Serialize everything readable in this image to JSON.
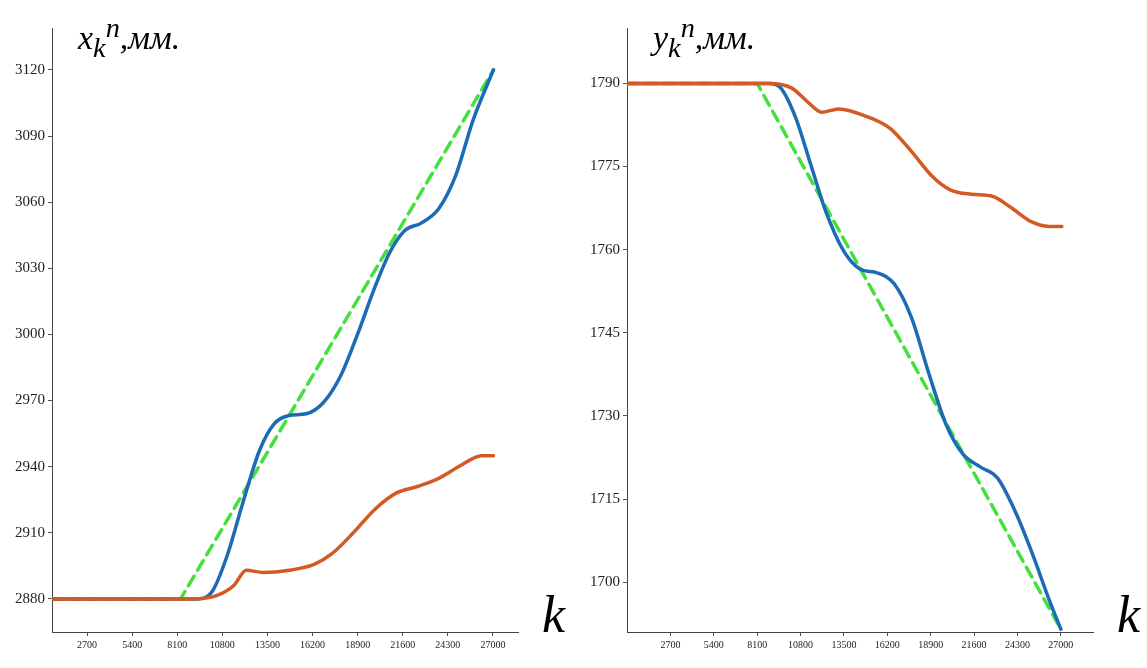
{
  "chart_data": [
    {
      "type": "line",
      "xlabel": "k",
      "ylabel": "x$_{k}$$^{n}$,мм.",
      "xlim": [
        600,
        28500
      ],
      "ylim": [
        2865,
        3139
      ],
      "xticks": [
        2700,
        5400,
        8100,
        10800,
        13500,
        16200,
        18900,
        21600,
        24300,
        27000
      ],
      "yticks": [
        2880,
        2910,
        2940,
        2970,
        3000,
        3030,
        3060,
        3090,
        3120
      ],
      "grid": false,
      "legend": false,
      "marker": "none",
      "series": [
        {
          "color": "#d35a24",
          "line_style": "solid",
          "x": [
            600,
            9000,
            10445,
            11470,
            12240,
            13260,
            14800,
            16330,
            17360,
            18640,
            19910,
            21200,
            22480,
            23760,
            25040,
            26320,
            27030
          ],
          "values": [
            2880,
            2880,
            2881.5,
            2886,
            2893,
            2892,
            2893,
            2895.8,
            2900.5,
            2910,
            2920.5,
            2928,
            2931,
            2934.7,
            2940.4,
            2945,
            2945
          ]
        },
        {
          "color": "#1c6bb5",
          "line_style": "solid",
          "x": [
            600,
            9290,
            10190,
            11085,
            11980,
            13005,
            13900,
            14800,
            15820,
            16840,
            17870,
            18890,
            19910,
            20810,
            21710,
            22730,
            23750,
            24780,
            25800,
            27030
          ],
          "values": [
            2880,
            2880,
            2883.4,
            2899.6,
            2922.4,
            2947,
            2959.4,
            2963.2,
            2964,
            2969,
            2981,
            3000,
            3021,
            3037,
            3047,
            3050.6,
            3057,
            3072.3,
            3097,
            3120
          ]
        },
        {
          "color": "#44e03c",
          "line_style": "dashed",
          "x": [
            600,
            8300,
            27030
          ],
          "values": [
            2880,
            2880,
            3120
          ]
        }
      ]
    },
    {
      "type": "line",
      "xlabel": "k",
      "ylabel": "y$_{k}$$^{n}$,мм.",
      "xlim": [
        0,
        29000
      ],
      "ylim": [
        1691,
        1800
      ],
      "xticks": [
        2700,
        5400,
        8100,
        10800,
        13500,
        16200,
        18900,
        21600,
        24300,
        27000
      ],
      "yticks": [
        1700,
        1715,
        1730,
        1745,
        1760,
        1775,
        1790
      ],
      "grid": false,
      "legend": false,
      "marker": "none",
      "series": [
        {
          "color": "#d35a24",
          "line_style": "solid",
          "x": [
            0,
            8895,
            10230,
            11300,
            12100,
            13170,
            14770,
            16370,
            17710,
            19040,
            20110,
            21450,
            22780,
            23850,
            25190,
            26260,
            27060
          ],
          "values": [
            1790,
            1790,
            1789.2,
            1786.5,
            1784.8,
            1785.4,
            1784.2,
            1781.9,
            1777.7,
            1773.1,
            1770.8,
            1770,
            1769.6,
            1767.7,
            1765,
            1764.2,
            1764.2
          ]
        },
        {
          "color": "#1c6bb5",
          "line_style": "solid",
          "x": [
            0,
            8895,
            9560,
            10500,
            11430,
            12370,
            13435,
            14500,
            15570,
            16640,
            17710,
            18780,
            19850,
            20910,
            21980,
            23050,
            24120,
            25190,
            26260,
            27000
          ],
          "values": [
            1790,
            1790,
            1789.2,
            1783.8,
            1775.4,
            1766.9,
            1760,
            1756.5,
            1755.8,
            1753.8,
            1747.7,
            1737.7,
            1728.5,
            1723.1,
            1720.8,
            1718.8,
            1713,
            1705.4,
            1696.9,
            1691.5
          ]
        },
        {
          "color": "#44e03c",
          "line_style": "dashed",
          "x": [
            0,
            8100,
            27000
          ],
          "values": [
            1790,
            1790,
            1691.5
          ]
        }
      ]
    }
  ]
}
